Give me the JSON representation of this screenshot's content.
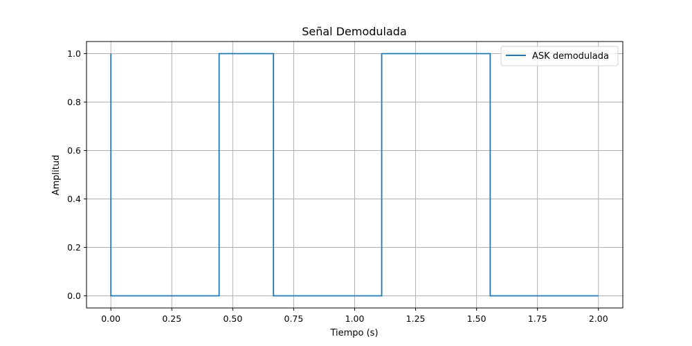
{
  "chart_data": {
    "type": "line",
    "title": "Señal Demodulada",
    "xlabel": "Tiempo (s)",
    "ylabel": "Amplitud",
    "xlim": [
      -0.1,
      2.1
    ],
    "ylim": [
      -0.05,
      1.05
    ],
    "xticks": [
      0.0,
      0.25,
      0.5,
      0.75,
      1.0,
      1.25,
      1.5,
      1.75,
      2.0
    ],
    "xtick_labels": [
      "0.00",
      "0.25",
      "0.50",
      "0.75",
      "1.00",
      "1.25",
      "1.50",
      "1.75",
      "2.00"
    ],
    "yticks": [
      0.0,
      0.2,
      0.4,
      0.6,
      0.8,
      1.0
    ],
    "ytick_labels": [
      "0.0",
      "0.2",
      "0.4",
      "0.6",
      "0.8",
      "1.0"
    ],
    "grid": true,
    "legend_position": "top-right",
    "series": [
      {
        "name": "ASK demodulada",
        "color": "#1f77b4",
        "x": [
          0.0,
          0.0,
          0.444,
          0.444,
          0.667,
          0.667,
          1.111,
          1.111,
          1.556,
          1.556,
          2.0
        ],
        "y": [
          1.0,
          0.0,
          0.0,
          1.0,
          1.0,
          0.0,
          0.0,
          1.0,
          1.0,
          0.0,
          0.0
        ]
      }
    ]
  }
}
